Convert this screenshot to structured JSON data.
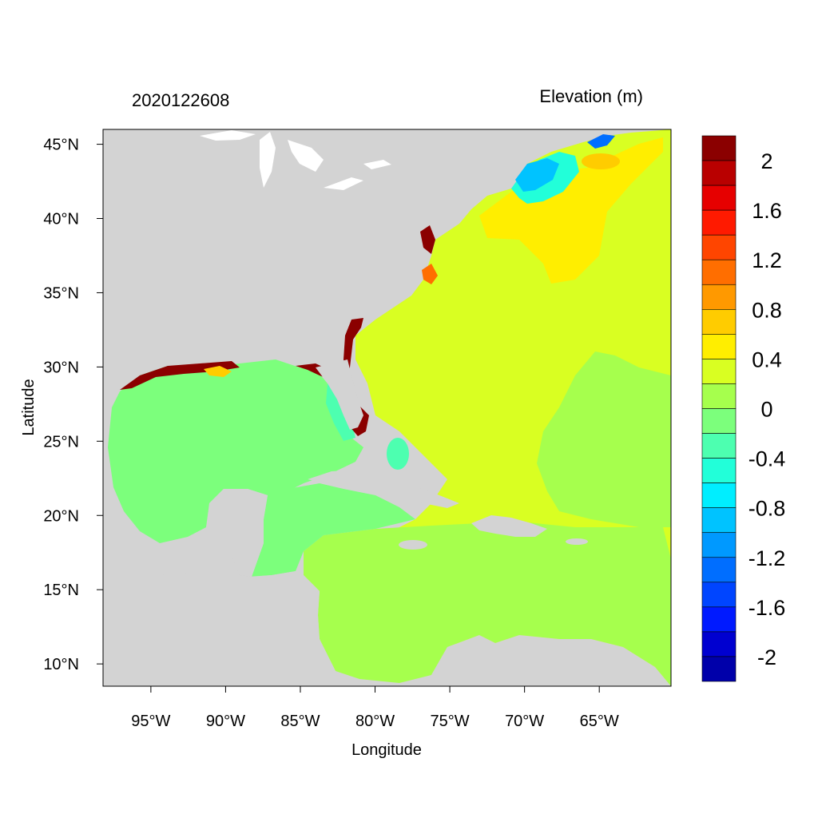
{
  "header": {
    "timestamp": "2020122608",
    "variable_title": "Elevation (m)"
  },
  "axes": {
    "xlabel": "Longitude",
    "ylabel": "Latitude",
    "x_range_deg_lon": [
      -98.2,
      -60.2
    ],
    "y_range_deg_lat": [
      8.5,
      46.0
    ],
    "x_ticks": [
      {
        "value": -95,
        "label": "95°W"
      },
      {
        "value": -90,
        "label": "90°W"
      },
      {
        "value": -85,
        "label": "85°W"
      },
      {
        "value": -80,
        "label": "80°W"
      },
      {
        "value": -75,
        "label": "75°W"
      },
      {
        "value": -70,
        "label": "70°W"
      },
      {
        "value": -65,
        "label": "65°W"
      }
    ],
    "y_ticks": [
      {
        "value": 45,
        "label": "45°N"
      },
      {
        "value": 40,
        "label": "40°N"
      },
      {
        "value": 35,
        "label": "35°N"
      },
      {
        "value": 30,
        "label": "30°N"
      },
      {
        "value": 25,
        "label": "25°N"
      },
      {
        "value": 20,
        "label": "20°N"
      },
      {
        "value": 15,
        "label": "15°N"
      },
      {
        "value": 10,
        "label": "10°N"
      }
    ]
  },
  "colorbar": {
    "colors_top_to_bottom": [
      "#8b0000",
      "#b90000",
      "#e60000",
      "#ff1a00",
      "#ff4500",
      "#ff6e00",
      "#ff9900",
      "#ffcc00",
      "#ffee00",
      "#d9ff22",
      "#a6ff4d",
      "#7cff7c",
      "#4dffb0",
      "#22ffd9",
      "#00eeff",
      "#00c3ff",
      "#0099ff",
      "#006eff",
      "#0045ff",
      "#001aff",
      "#0000d0",
      "#0000aa"
    ],
    "labels": [
      {
        "label": "2",
        "value": 2
      },
      {
        "label": "1.6",
        "value": 1.6
      },
      {
        "label": "1.2",
        "value": 1.2
      },
      {
        "label": "0.8",
        "value": 0.8
      },
      {
        "label": "0.4",
        "value": 0.4
      },
      {
        "label": "0",
        "value": 0
      },
      {
        "label": "-0.4",
        "value": -0.4
      },
      {
        "label": "-0.8",
        "value": -0.8
      },
      {
        "label": "-1.2",
        "value": -1.2
      },
      {
        "label": "-1.6",
        "value": -1.6
      },
      {
        "label": "-2",
        "value": -2
      }
    ]
  },
  "colors": {
    "land": "#d3d3d3",
    "lakes": "#ffffff",
    "frame": "#000000"
  }
}
